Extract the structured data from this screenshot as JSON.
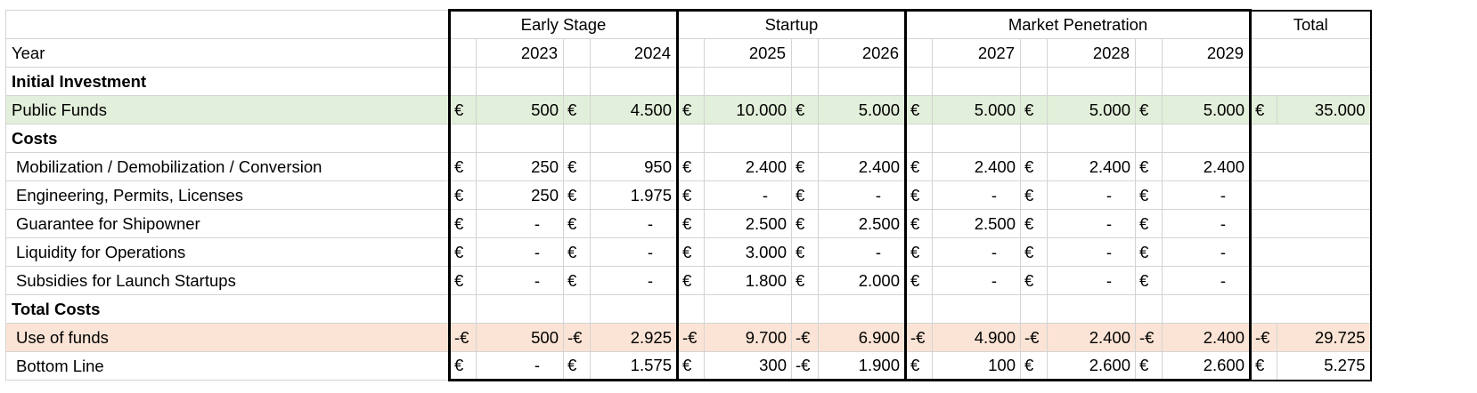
{
  "groups": [
    {
      "label": "Early Stage",
      "years": [
        "2023",
        "2024"
      ]
    },
    {
      "label": "Startup",
      "years": [
        "2025",
        "2026"
      ]
    },
    {
      "label": "Market Penetration",
      "years": [
        "2027",
        "2028",
        "2029"
      ]
    }
  ],
  "total_header": "Total",
  "year_label": "Year",
  "currency": "€",
  "sections": {
    "initial_investment": "Initial Investment",
    "costs": "Costs",
    "total_costs": "Total Costs"
  },
  "rows": {
    "public_funds": {
      "label": "Public Funds",
      "cells": [
        {
          "cur": "€",
          "val": "500"
        },
        {
          "cur": "€",
          "val": "4.500"
        },
        {
          "cur": "€",
          "val": "10.000"
        },
        {
          "cur": "€",
          "val": "5.000"
        },
        {
          "cur": "€",
          "val": "5.000"
        },
        {
          "cur": "€",
          "val": "5.000"
        },
        {
          "cur": "€",
          "val": "5.000"
        }
      ],
      "total": {
        "cur": "€",
        "val": "35.000"
      }
    },
    "mobilization": {
      "label": "Mobilization / Demobilization / Conversion",
      "cells": [
        {
          "cur": "€",
          "val": "250"
        },
        {
          "cur": "€",
          "val": "950"
        },
        {
          "cur": "€",
          "val": "2.400"
        },
        {
          "cur": "€",
          "val": "2.400"
        },
        {
          "cur": "€",
          "val": "2.400"
        },
        {
          "cur": "€",
          "val": "2.400"
        },
        {
          "cur": "€",
          "val": "2.400"
        }
      ]
    },
    "engineering": {
      "label": "Engineering, Permits, Licenses",
      "cells": [
        {
          "cur": "€",
          "val": "250"
        },
        {
          "cur": "€",
          "val": "1.975"
        },
        {
          "cur": "€",
          "val": "-"
        },
        {
          "cur": "€",
          "val": "-"
        },
        {
          "cur": "€",
          "val": "-"
        },
        {
          "cur": "€",
          "val": "-"
        },
        {
          "cur": "€",
          "val": "-"
        }
      ]
    },
    "guarantee": {
      "label": "Guarantee for Shipowner",
      "cells": [
        {
          "cur": "€",
          "val": "-"
        },
        {
          "cur": "€",
          "val": "-"
        },
        {
          "cur": "€",
          "val": "2.500"
        },
        {
          "cur": "€",
          "val": "2.500"
        },
        {
          "cur": "€",
          "val": "2.500"
        },
        {
          "cur": "€",
          "val": "-"
        },
        {
          "cur": "€",
          "val": "-"
        }
      ]
    },
    "liquidity": {
      "label": "Liquidity for Operations",
      "cells": [
        {
          "cur": "€",
          "val": "-"
        },
        {
          "cur": "€",
          "val": "-"
        },
        {
          "cur": "€",
          "val": "3.000"
        },
        {
          "cur": "€",
          "val": "-"
        },
        {
          "cur": "€",
          "val": "-"
        },
        {
          "cur": "€",
          "val": "-"
        },
        {
          "cur": "€",
          "val": "-"
        }
      ]
    },
    "subsidies": {
      "label": "Subsidies for Launch Startups",
      "cells": [
        {
          "cur": "€",
          "val": "-"
        },
        {
          "cur": "€",
          "val": "-"
        },
        {
          "cur": "€",
          "val": "1.800"
        },
        {
          "cur": "€",
          "val": "2.000"
        },
        {
          "cur": "€",
          "val": "-"
        },
        {
          "cur": "€",
          "val": "-"
        },
        {
          "cur": "€",
          "val": "-"
        }
      ]
    },
    "use_of_funds": {
      "label": "Use of funds",
      "cells": [
        {
          "cur": "-€",
          "val": "500"
        },
        {
          "cur": "-€",
          "val": "2.925"
        },
        {
          "cur": "-€",
          "val": "9.700"
        },
        {
          "cur": "-€",
          "val": "6.900"
        },
        {
          "cur": "-€",
          "val": "4.900"
        },
        {
          "cur": "-€",
          "val": "2.400"
        },
        {
          "cur": "-€",
          "val": "2.400"
        }
      ],
      "total": {
        "cur": "-€",
        "val": "29.725"
      }
    },
    "bottom_line": {
      "label": "Bottom Line",
      "cells": [
        {
          "cur": "€",
          "val": "-"
        },
        {
          "cur": "€",
          "val": "1.575"
        },
        {
          "cur": "€",
          "val": "300"
        },
        {
          "cur": "-€",
          "val": "1.900"
        },
        {
          "cur": "€",
          "val": "100"
        },
        {
          "cur": "€",
          "val": "2.600"
        },
        {
          "cur": "€",
          "val": "2.600"
        }
      ],
      "total": {
        "cur": "€",
        "val": "5.275"
      }
    }
  },
  "colors": {
    "public_funds_fill": "#e2efda",
    "use_of_funds_fill": "#fbe4d5",
    "gridline": "#d4d4d4",
    "group_border": "#000000"
  }
}
